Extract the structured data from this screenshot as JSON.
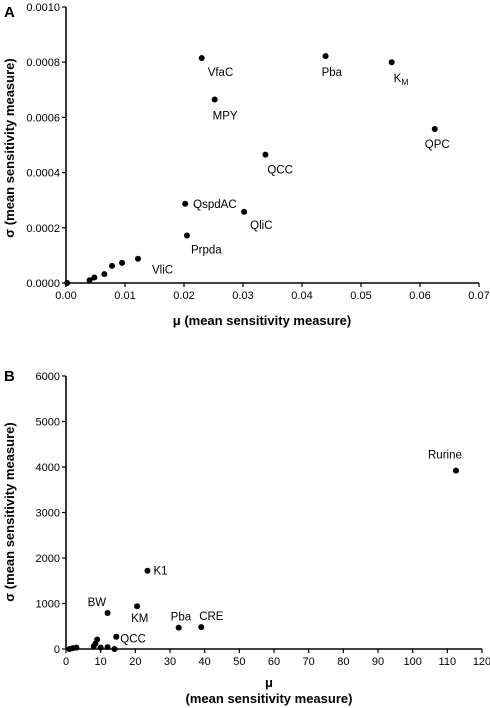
{
  "chart_data": [
    {
      "type": "scatter",
      "panel": "A",
      "xlabel": "μ  (mean sensitivity measure)",
      "ylabel": "σ (mean sensitivity measure)",
      "xlim": [
        0,
        0.07
      ],
      "ylim": [
        0,
        0.001
      ],
      "xticks": [
        "0.00",
        "0.01",
        "0.02",
        "0.03",
        "0.04",
        "0.05",
        "0.06",
        "0.07"
      ],
      "yticks": [
        "0.0000",
        "0.0002",
        "0.0004",
        "0.0006",
        "0.0008",
        "0.0010"
      ],
      "points": [
        {
          "x": 0.0002,
          "y": 0.0,
          "label": ""
        },
        {
          "x": 0.004,
          "y": 1e-05,
          "label": ""
        },
        {
          "x": 0.0048,
          "y": 2e-05,
          "label": ""
        },
        {
          "x": 0.0065,
          "y": 3.2e-05,
          "label": ""
        },
        {
          "x": 0.0078,
          "y": 6.2e-05,
          "label": ""
        },
        {
          "x": 0.0095,
          "y": 7.3e-05,
          "label": ""
        },
        {
          "x": 0.0122,
          "y": 8.8e-05,
          "label": "VliC"
        },
        {
          "x": 0.0205,
          "y": 0.000172,
          "label": "Prpda"
        },
        {
          "x": 0.0202,
          "y": 0.000287,
          "label": "QspdAC"
        },
        {
          "x": 0.0302,
          "y": 0.000258,
          "label": "QliC"
        },
        {
          "x": 0.0338,
          "y": 0.000465,
          "label": "QCC"
        },
        {
          "x": 0.0252,
          "y": 0.000665,
          "label": "MPY"
        },
        {
          "x": 0.023,
          "y": 0.000815,
          "label": "VfaC"
        },
        {
          "x": 0.044,
          "y": 0.000822,
          "label": "Pba"
        },
        {
          "x": 0.0552,
          "y": 0.0008,
          "label": "KM",
          "label_sub": "M",
          "label_main": "K"
        },
        {
          "x": 0.0625,
          "y": 0.000558,
          "label": "QPC"
        }
      ]
    },
    {
      "type": "scatter",
      "panel": "B",
      "xlabel": "μ",
      "xlabel2": "(mean sensitivity measure)",
      "ylabel": "σ (mean sensitivity measure)",
      "xlim": [
        0,
        120
      ],
      "ylim": [
        0,
        6000
      ],
      "xticks": [
        "0",
        "10",
        "20",
        "30",
        "40",
        "50",
        "60",
        "70",
        "80",
        "90",
        "100",
        "110",
        "120"
      ],
      "yticks": [
        "0",
        "1000",
        "2000",
        "3000",
        "4000",
        "5000",
        "6000"
      ],
      "points": [
        {
          "x": 1.0,
          "y": 0,
          "label": ""
        },
        {
          "x": 2.0,
          "y": 20,
          "label": ""
        },
        {
          "x": 3.0,
          "y": 30,
          "label": ""
        },
        {
          "x": 8.0,
          "y": 60,
          "label": ""
        },
        {
          "x": 8.5,
          "y": 120,
          "label": ""
        },
        {
          "x": 9.0,
          "y": 210,
          "label": ""
        },
        {
          "x": 10.0,
          "y": 30,
          "label": ""
        },
        {
          "x": 12.0,
          "y": 40,
          "label": ""
        },
        {
          "x": 14.0,
          "y": 0,
          "label": ""
        },
        {
          "x": 14.5,
          "y": 270,
          "label": "QCC"
        },
        {
          "x": 12.0,
          "y": 790,
          "label": "BW"
        },
        {
          "x": 20.5,
          "y": 940,
          "label": "KM"
        },
        {
          "x": 23.5,
          "y": 1720,
          "label": "K1"
        },
        {
          "x": 32.5,
          "y": 470,
          "label": "Pba"
        },
        {
          "x": 39.0,
          "y": 480,
          "label": "CRE"
        },
        {
          "x": 112.5,
          "y": 3920,
          "label": "Rurine"
        }
      ]
    }
  ]
}
